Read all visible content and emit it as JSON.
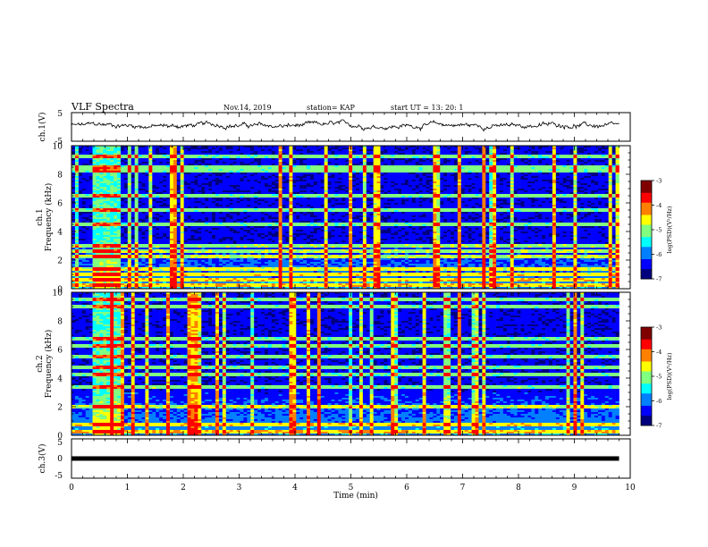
{
  "header": {
    "title": "VLF Spectra",
    "date": "Nov.14, 2019",
    "station": "station= KAP",
    "start": "start  UT =  13: 20: 1"
  },
  "chart_data": [
    {
      "type": "line",
      "panel": "ch1-waveform",
      "ylabel": "ch.1(V)",
      "ylim": [
        -5,
        5
      ],
      "yticks": [
        "5",
        "-5"
      ],
      "xlim": [
        0,
        10
      ],
      "note": "noisy waveform, amplitude about ±1.5 V around ~0.5 V",
      "color": "#000000"
    },
    {
      "type": "heatmap",
      "panel": "ch1-spectrogram",
      "ylabel": "ch.1 Frequency (kHz)",
      "ylim": [
        0,
        10
      ],
      "yticks": [
        "0",
        "2",
        "4",
        "6",
        "8",
        "10"
      ],
      "xlim": [
        0,
        9.8
      ],
      "colorbar": {
        "label": "log(PSD)(V²/Hz)",
        "range": [
          -7,
          -3
        ],
        "ticks": [
          "-3",
          "-4",
          "-5",
          "-6",
          "-7"
        ]
      },
      "bright_bands_khz": [
        0.2,
        0.6,
        1.0,
        1.4,
        2.3,
        2.6,
        3.0,
        4.5,
        5.5,
        6.5,
        8.2,
        8.5,
        9.3
      ],
      "burst_minutes": [
        0.35,
        0.9
      ]
    },
    {
      "type": "heatmap",
      "panel": "ch2-spectrogram",
      "ylabel": "ch.2 Frequency (kHz)",
      "ylim": [
        0,
        10
      ],
      "yticks": [
        "0",
        "2",
        "4",
        "6",
        "8",
        "10"
      ],
      "xlim": [
        0,
        9.8
      ],
      "colorbar": {
        "label": "log(PSD)(V²/Hz)",
        "range": [
          -7,
          -3
        ],
        "ticks": [
          "-3",
          "-4",
          "-5",
          "-6",
          "-7"
        ]
      },
      "bright_bands_khz": [
        0.3,
        0.8,
        2.0,
        3.4,
        4.3,
        4.7,
        5.5,
        6.2,
        6.8,
        9.0,
        9.5
      ],
      "burst_minutes": [
        0.35,
        0.9
      ]
    },
    {
      "type": "line",
      "panel": "ch3-waveform",
      "ylabel": "ch.3(V)",
      "ylim": [
        -5,
        5
      ],
      "yticks": [
        "5",
        "0",
        "-5"
      ],
      "xlim": [
        0,
        10
      ],
      "constant_value": 0,
      "color": "#000000"
    }
  ],
  "x_axis": {
    "label": "Time  (min)",
    "ticks": [
      "0",
      "1",
      "2",
      "3",
      "4",
      "5",
      "6",
      "7",
      "8",
      "9",
      "10"
    ]
  },
  "colormap": [
    "#00007f",
    "#0000ff",
    "#0080ff",
    "#00ffff",
    "#80ff80",
    "#ffff00",
    "#ff8000",
    "#ff0000",
    "#800000",
    "#ffffff"
  ]
}
